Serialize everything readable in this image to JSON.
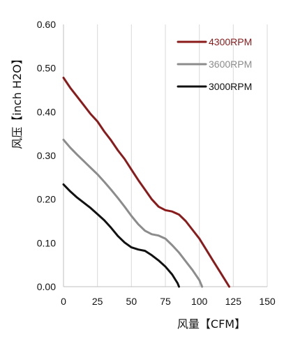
{
  "chart_data": {
    "type": "line",
    "xlabel": "风量【CFM】",
    "ylabel": "风压【inch H2O】",
    "xlim": [
      0,
      150
    ],
    "ylim": [
      0,
      0.6
    ],
    "x_ticks": [
      "0",
      "25",
      "50",
      "75",
      "100",
      "125",
      "150"
    ],
    "y_ticks": [
      "0.00",
      "0.10",
      "0.20",
      "0.30",
      "0.40",
      "0.50",
      "0.60"
    ],
    "x_tick_values": [
      0,
      25,
      50,
      75,
      100,
      125,
      150
    ],
    "y_tick_values": [
      0,
      0.1,
      0.2,
      0.3,
      0.4,
      0.5,
      0.6
    ],
    "grid": {
      "vertical": true,
      "horizontal": false,
      "color": "#d9d9d9"
    },
    "legend_position": "top-right",
    "series": [
      {
        "name": "4300RPM",
        "color": "#8b1a1a",
        "points": [
          [
            0,
            0.478
          ],
          [
            5,
            0.455
          ],
          [
            10,
            0.435
          ],
          [
            15,
            0.415
          ],
          [
            20,
            0.395
          ],
          [
            25,
            0.378
          ],
          [
            30,
            0.355
          ],
          [
            35,
            0.335
          ],
          [
            40,
            0.312
          ],
          [
            45,
            0.292
          ],
          [
            50,
            0.268
          ],
          [
            55,
            0.244
          ],
          [
            60,
            0.222
          ],
          [
            65,
            0.2
          ],
          [
            70,
            0.183
          ],
          [
            75,
            0.175
          ],
          [
            80,
            0.172
          ],
          [
            85,
            0.165
          ],
          [
            90,
            0.15
          ],
          [
            95,
            0.13
          ],
          [
            100,
            0.11
          ],
          [
            105,
            0.085
          ],
          [
            110,
            0.06
          ],
          [
            115,
            0.035
          ],
          [
            120,
            0.01
          ],
          [
            122,
            0.0
          ]
        ]
      },
      {
        "name": "3600RPM",
        "color": "#8c8c8c",
        "points": [
          [
            0,
            0.336
          ],
          [
            5,
            0.318
          ],
          [
            10,
            0.302
          ],
          [
            15,
            0.287
          ],
          [
            20,
            0.272
          ],
          [
            25,
            0.257
          ],
          [
            30,
            0.24
          ],
          [
            35,
            0.222
          ],
          [
            40,
            0.203
          ],
          [
            45,
            0.183
          ],
          [
            50,
            0.162
          ],
          [
            55,
            0.143
          ],
          [
            60,
            0.128
          ],
          [
            65,
            0.12
          ],
          [
            70,
            0.117
          ],
          [
            75,
            0.11
          ],
          [
            80,
            0.095
          ],
          [
            85,
            0.078
          ],
          [
            90,
            0.058
          ],
          [
            95,
            0.038
          ],
          [
            100,
            0.015
          ],
          [
            102,
            0.0
          ]
        ]
      },
      {
        "name": "3000RPM",
        "color": "#111111",
        "points": [
          [
            0,
            0.234
          ],
          [
            5,
            0.218
          ],
          [
            10,
            0.204
          ],
          [
            15,
            0.192
          ],
          [
            20,
            0.18
          ],
          [
            25,
            0.166
          ],
          [
            30,
            0.152
          ],
          [
            35,
            0.135
          ],
          [
            40,
            0.116
          ],
          [
            45,
            0.101
          ],
          [
            50,
            0.09
          ],
          [
            55,
            0.085
          ],
          [
            60,
            0.082
          ],
          [
            65,
            0.072
          ],
          [
            70,
            0.06
          ],
          [
            75,
            0.046
          ],
          [
            80,
            0.028
          ],
          [
            84,
            0.008
          ],
          [
            85,
            0.0
          ]
        ]
      }
    ]
  }
}
